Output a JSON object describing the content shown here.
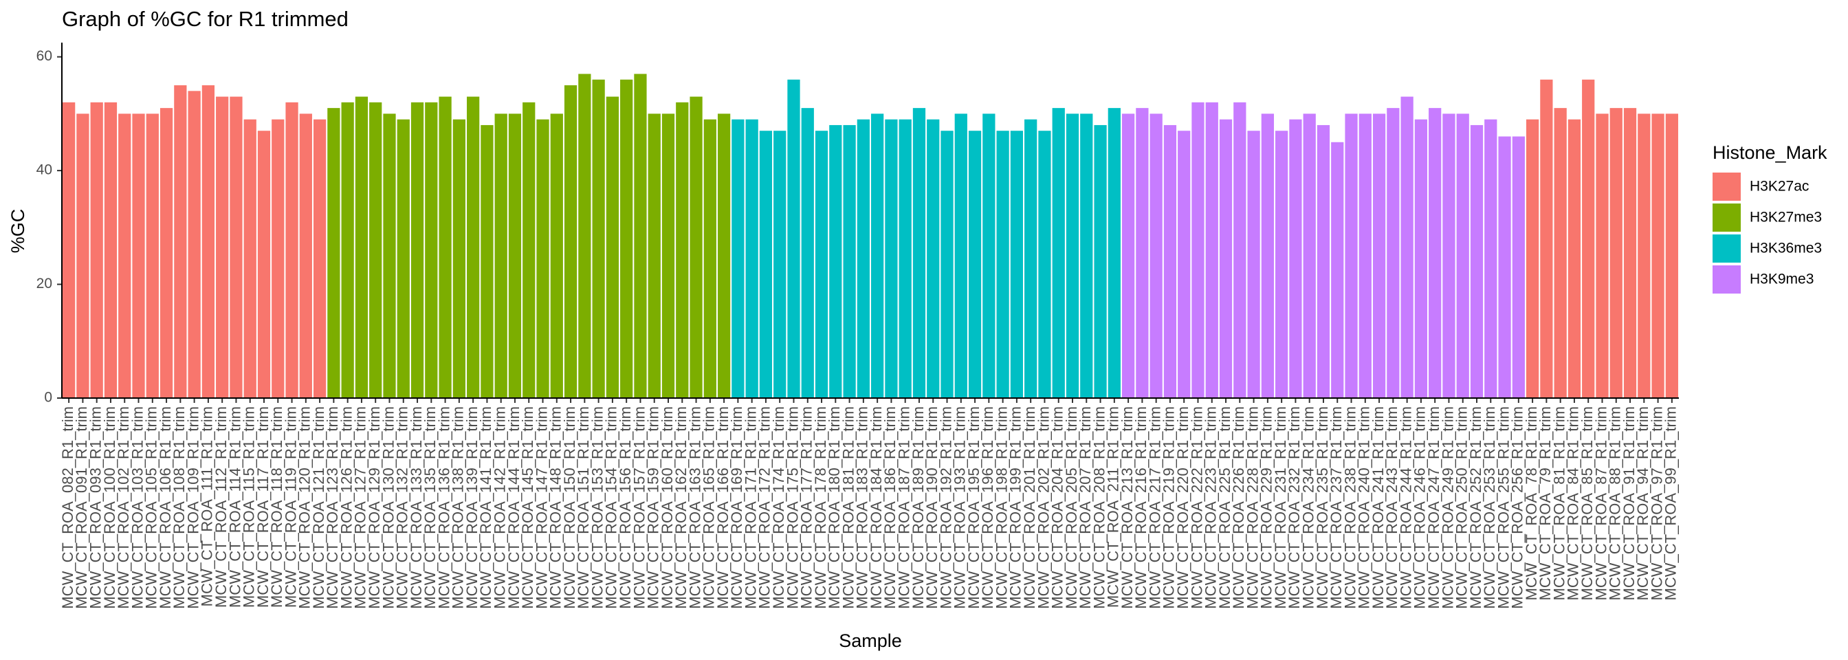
{
  "chart_data": {
    "type": "bar",
    "title": "Graph of %GC for R1 trimmed",
    "x_label": "Sample",
    "y_label": "%GC",
    "legend_title": "Histone_Mark",
    "legend_position": "right",
    "categories": [
      "MCW_CT_ROA_082_R1_trim",
      "MCW_CT_ROA_091_R1_trim",
      "MCW_CT_ROA_093_R1_trim",
      "MCW_CT_ROA_100_R1_trim",
      "MCW_CT_ROA_102_R1_trim",
      "MCW_CT_ROA_103_R1_trim",
      "MCW_CT_ROA_105_R1_trim",
      "MCW_CT_ROA_106_R1_trim",
      "MCW_CT_ROA_108_R1_trim",
      "MCW_CT_ROA_109_R1_trim",
      "MCW_CT_ROA_111_R1_trim",
      "MCW_CT_ROA_112_R1_trim",
      "MCW_CT_ROA_114_R1_trim",
      "MCW_CT_ROA_115_R1_trim",
      "MCW_CT_ROA_117_R1_trim",
      "MCW_CT_ROA_118_R1_trim",
      "MCW_CT_ROA_119_R1_trim",
      "MCW_CT_ROA_120_R1_trim",
      "MCW_CT_ROA_121_R1_trim",
      "MCW_CT_ROA_123_R1_trim",
      "MCW_CT_ROA_126_R1_trim",
      "MCW_CT_ROA_127_R1_trim",
      "MCW_CT_ROA_129_R1_trim",
      "MCW_CT_ROA_130_R1_trim",
      "MCW_CT_ROA_132_R1_trim",
      "MCW_CT_ROA_133_R1_trim",
      "MCW_CT_ROA_135_R1_trim",
      "MCW_CT_ROA_136_R1_trim",
      "MCW_CT_ROA_138_R1_trim",
      "MCW_CT_ROA_139_R1_trim",
      "MCW_CT_ROA_141_R1_trim",
      "MCW_CT_ROA_142_R1_trim",
      "MCW_CT_ROA_144_R1_trim",
      "MCW_CT_ROA_145_R1_trim",
      "MCW_CT_ROA_147_R1_trim",
      "MCW_CT_ROA_148_R1_trim",
      "MCW_CT_ROA_150_R1_trim",
      "MCW_CT_ROA_151_R1_trim",
      "MCW_CT_ROA_153_R1_trim",
      "MCW_CT_ROA_154_R1_trim",
      "MCW_CT_ROA_156_R1_trim",
      "MCW_CT_ROA_157_R1_trim",
      "MCW_CT_ROA_159_R1_trim",
      "MCW_CT_ROA_160_R1_trim",
      "MCW_CT_ROA_162_R1_trim",
      "MCW_CT_ROA_163_R1_trim",
      "MCW_CT_ROA_165_R1_trim",
      "MCW_CT_ROA_166_R1_trim",
      "MCW_CT_ROA_169_R1_trim",
      "MCW_CT_ROA_171_R1_trim",
      "MCW_CT_ROA_172_R1_trim",
      "MCW_CT_ROA_174_R1_trim",
      "MCW_CT_ROA_175_R1_trim",
      "MCW_CT_ROA_177_R1_trim",
      "MCW_CT_ROA_178_R1_trim",
      "MCW_CT_ROA_180_R1_trim",
      "MCW_CT_ROA_181_R1_trim",
      "MCW_CT_ROA_183_R1_trim",
      "MCW_CT_ROA_184_R1_trim",
      "MCW_CT_ROA_186_R1_trim",
      "MCW_CT_ROA_187_R1_trim",
      "MCW_CT_ROA_189_R1_trim",
      "MCW_CT_ROA_190_R1_trim",
      "MCW_CT_ROA_192_R1_trim",
      "MCW_CT_ROA_193_R1_trim",
      "MCW_CT_ROA_195_R1_trim",
      "MCW_CT_ROA_196_R1_trim",
      "MCW_CT_ROA_198_R1_trim",
      "MCW_CT_ROA_199_R1_trim",
      "MCW_CT_ROA_201_R1_trim",
      "MCW_CT_ROA_202_R1_trim",
      "MCW_CT_ROA_204_R1_trim",
      "MCW_CT_ROA_205_R1_trim",
      "MCW_CT_ROA_207_R1_trim",
      "MCW_CT_ROA_208_R1_trim",
      "MCW_CT_ROA_211_R1_trim",
      "MCW_CT_ROA_213_R1_trim",
      "MCW_CT_ROA_216_R1_trim",
      "MCW_CT_ROA_217_R1_trim",
      "MCW_CT_ROA_219_R1_trim",
      "MCW_CT_ROA_220_R1_trim",
      "MCW_CT_ROA_222_R1_trim",
      "MCW_CT_ROA_223_R1_trim",
      "MCW_CT_ROA_225_R1_trim",
      "MCW_CT_ROA_226_R1_trim",
      "MCW_CT_ROA_228_R1_trim",
      "MCW_CT_ROA_229_R1_trim",
      "MCW_CT_ROA_231_R1_trim",
      "MCW_CT_ROA_232_R1_trim",
      "MCW_CT_ROA_234_R1_trim",
      "MCW_CT_ROA_235_R1_trim",
      "MCW_CT_ROA_237_R1_trim",
      "MCW_CT_ROA_238_R1_trim",
      "MCW_CT_ROA_240_R1_trim",
      "MCW_CT_ROA_241_R1_trim",
      "MCW_CT_ROA_243_R1_trim",
      "MCW_CT_ROA_244_R1_trim",
      "MCW_CT_ROA_246_R1_trim",
      "MCW_CT_ROA_247_R1_trim",
      "MCW_CT_ROA_249_R1_trim",
      "MCW_CT_ROA_250_R1_trim",
      "MCW_CT_ROA_252_R1_trim",
      "MCW_CT_ROA_253_R1_trim",
      "MCW_CT_ROA_255_R1_trim",
      "MCW_CT_ROA_256_R1_trim",
      "MCW_CT_ROA_78_R1_trim",
      "MCW_CT_ROA_79_R1_trim",
      "MCW_CT_ROA_81_R1_trim",
      "MCW_CT_ROA_84_R1_trim",
      "MCW_CT_ROA_85_R1_trim",
      "MCW_CT_ROA_87_R1_trim",
      "MCW_CT_ROA_88_R1_trim",
      "MCW_CT_ROA_91_R1_trim",
      "MCW_CT_ROA_94_R1_trim",
      "MCW_CT_ROA_97_R1_trim",
      "MCW_CT_ROA_99_R1_trim"
    ],
    "series": [
      {
        "name": "H3K27ac",
        "color": "#f8766d",
        "values": [
          52,
          50,
          52,
          52,
          50,
          50,
          50,
          51,
          55,
          54,
          55,
          53,
          53,
          49,
          47,
          49,
          52,
          50,
          49,
          null,
          null,
          null,
          null,
          null,
          null,
          null,
          null,
          null,
          null,
          null,
          null,
          null,
          null,
          null,
          null,
          null,
          null,
          null,
          null,
          null,
          null,
          null,
          null,
          null,
          null,
          null,
          null,
          null,
          null,
          null,
          null,
          null,
          null,
          null,
          null,
          null,
          null,
          null,
          null,
          null,
          null,
          null,
          null,
          null,
          null,
          null,
          null,
          null,
          null,
          null,
          null,
          null,
          null,
          null,
          null,
          null,
          null,
          null,
          null,
          null,
          null,
          null,
          null,
          null,
          null,
          null,
          null,
          null,
          null,
          null,
          null,
          null,
          null,
          null,
          null,
          null,
          null,
          null,
          null,
          null,
          null,
          null,
          null,
          null,
          null,
          49,
          56,
          51,
          49,
          56,
          50,
          51,
          51,
          50,
          50,
          50
        ]
      },
      {
        "name": "H3K27me3",
        "color": "#7cae00",
        "values": [
          null,
          null,
          null,
          null,
          null,
          null,
          null,
          null,
          null,
          null,
          null,
          null,
          null,
          null,
          null,
          null,
          null,
          null,
          null,
          51,
          52,
          53,
          52,
          50,
          49,
          52,
          52,
          53,
          49,
          53,
          48,
          50,
          50,
          52,
          49,
          50,
          55,
          57,
          56,
          53,
          56,
          57,
          50,
          50,
          52,
          53,
          49,
          50,
          null,
          null,
          null,
          null,
          null,
          null,
          null,
          null,
          null,
          null,
          null,
          null,
          null,
          null,
          null,
          null,
          null,
          null,
          null,
          null,
          null,
          null,
          null,
          null,
          null,
          null,
          null,
          null,
          null,
          null,
          null,
          null,
          null,
          null,
          null,
          null,
          null,
          null,
          null,
          null,
          null,
          null,
          null,
          null,
          null,
          null,
          null,
          null,
          null,
          null,
          null,
          null,
          null,
          null,
          null,
          null,
          null,
          null,
          null,
          null,
          null,
          null,
          null,
          null,
          null,
          null,
          null,
          null
        ]
      },
      {
        "name": "H3K36me3",
        "color": "#00bfc4",
        "values": [
          null,
          null,
          null,
          null,
          null,
          null,
          null,
          null,
          null,
          null,
          null,
          null,
          null,
          null,
          null,
          null,
          null,
          null,
          null,
          null,
          null,
          null,
          null,
          null,
          null,
          null,
          null,
          null,
          null,
          null,
          null,
          null,
          null,
          null,
          null,
          null,
          null,
          null,
          null,
          null,
          null,
          null,
          null,
          null,
          null,
          null,
          null,
          null,
          49,
          49,
          47,
          47,
          56,
          51,
          47,
          48,
          48,
          49,
          50,
          49,
          49,
          51,
          49,
          47,
          50,
          47,
          50,
          47,
          47,
          49,
          47,
          51,
          50,
          50,
          48,
          51,
          null,
          null,
          null,
          null,
          null,
          null,
          null,
          null,
          null,
          null,
          null,
          null,
          null,
          null,
          null,
          null,
          null,
          null,
          null,
          null,
          null,
          null,
          null,
          null,
          null,
          null,
          null,
          null,
          null,
          null,
          null,
          null,
          null,
          null,
          null,
          null,
          null,
          null,
          null,
          null
        ]
      },
      {
        "name": "H3K9me3",
        "color": "#c77cff",
        "values": [
          null,
          null,
          null,
          null,
          null,
          null,
          null,
          null,
          null,
          null,
          null,
          null,
          null,
          null,
          null,
          null,
          null,
          null,
          null,
          null,
          null,
          null,
          null,
          null,
          null,
          null,
          null,
          null,
          null,
          null,
          null,
          null,
          null,
          null,
          null,
          null,
          null,
          null,
          null,
          null,
          null,
          null,
          null,
          null,
          null,
          null,
          null,
          null,
          null,
          null,
          null,
          null,
          null,
          null,
          null,
          null,
          null,
          null,
          null,
          null,
          null,
          null,
          null,
          null,
          null,
          null,
          null,
          null,
          null,
          null,
          null,
          null,
          null,
          null,
          null,
          null,
          50,
          51,
          50,
          48,
          47,
          52,
          52,
          49,
          52,
          47,
          50,
          47,
          49,
          50,
          48,
          45,
          50,
          50,
          50,
          51,
          53,
          49,
          51,
          50,
          50,
          48,
          49,
          46,
          46,
          null,
          null,
          null,
          null,
          null,
          null,
          null,
          null,
          null,
          null,
          null
        ]
      }
    ],
    "ylim": [
      0,
      62.5
    ],
    "yticks": [
      0,
      20,
      40,
      60
    ],
    "grid": false
  }
}
